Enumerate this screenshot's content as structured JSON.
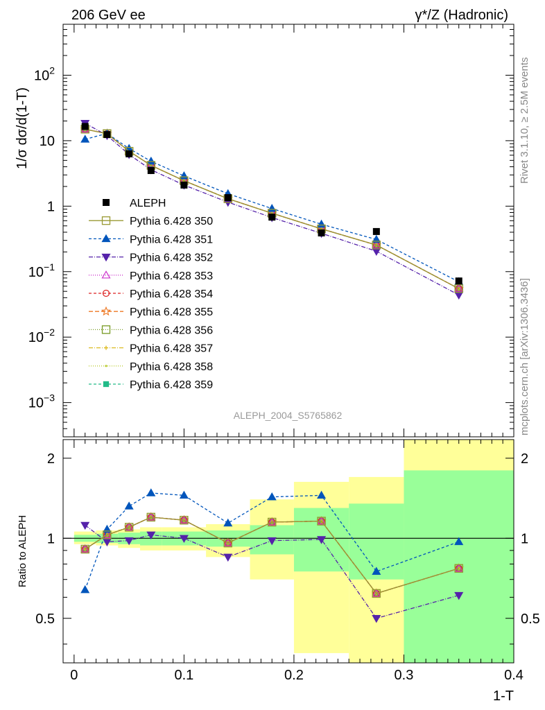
{
  "header": {
    "left": "206 GeV ee",
    "right": "γ*/Z (Hadronic)"
  },
  "side_labels": {
    "rivet": "Rivet 3.1.10, ≥ 2.5M events",
    "mcplots": "mcplots.cern.ch [arXiv:1306.3436]"
  },
  "analysis_id": "ALEPH_2004_S5765862",
  "colors": {
    "ratio_band_inner": "#99ff99",
    "ratio_band_outer": "#ffff99",
    "data": "#000000"
  },
  "chart_data": [
    {
      "type": "scatter",
      "panel": "main",
      "ylabel": "1/σ  dσ/d(1-T)",
      "yscale": "log",
      "ylim": [
        0.0003,
        600
      ],
      "xlim": [
        -0.01,
        0.4
      ],
      "yticks": [
        {
          "value": 100,
          "label": "10",
          "exp": "2"
        },
        {
          "value": 10,
          "label": "10",
          "exp": ""
        },
        {
          "value": 1,
          "label": "1",
          "exp": ""
        },
        {
          "value": 0.1,
          "label": "10",
          "exp": "−1"
        },
        {
          "value": 0.01,
          "label": "10",
          "exp": "−2"
        },
        {
          "value": 0.001,
          "label": "10",
          "exp": "−3"
        }
      ],
      "legend_position": "center-left",
      "x": [
        0.01,
        0.03,
        0.05,
        0.07,
        0.1,
        0.14,
        0.18,
        0.225,
        0.275,
        0.35
      ],
      "data": {
        "name": "ALEPH",
        "values": [
          16.5,
          12.4,
          6.3,
          3.5,
          2.1,
          1.35,
          0.68,
          0.39,
          0.41,
          0.072
        ]
      },
      "series": [
        {
          "name": "Pythia 6.428 350",
          "color": "#999933",
          "dash": "",
          "marker": "square-open",
          "values": [
            15.0,
            12.8,
            6.9,
            4.2,
            2.45,
            1.3,
            0.78,
            0.45,
            0.255,
            0.055
          ]
        },
        {
          "name": "Pythia 6.428 351",
          "color": "#0055bb",
          "dash": "4,3",
          "marker": "triangle-up",
          "values": [
            10.5,
            12.9,
            7.6,
            4.85,
            2.9,
            1.55,
            0.92,
            0.53,
            0.31,
            0.07
          ]
        },
        {
          "name": "Pythia 6.428 352",
          "color": "#5522aa",
          "dash": "6,2,1,2",
          "marker": "triangle-down",
          "values": [
            18.5,
            12.0,
            6.15,
            3.6,
            2.1,
            1.15,
            0.67,
            0.385,
            0.205,
            0.044
          ]
        },
        {
          "name": "Pythia 6.428 353",
          "color": "#cc33cc",
          "dash": "1,2",
          "marker": "triangle-up-open",
          "values": [
            15.0,
            12.8,
            6.9,
            4.2,
            2.45,
            1.3,
            0.78,
            0.45,
            0.255,
            0.055
          ]
        },
        {
          "name": "Pythia 6.428 354",
          "color": "#dd2222",
          "dash": "4,3",
          "marker": "circle-open",
          "values": [
            15.0,
            12.8,
            6.9,
            4.2,
            2.45,
            1.3,
            0.78,
            0.45,
            0.255,
            0.055
          ]
        },
        {
          "name": "Pythia 6.428 355",
          "color": "#ee7722",
          "dash": "6,3",
          "marker": "star-open",
          "values": [
            15.0,
            12.8,
            6.9,
            4.2,
            2.45,
            1.3,
            0.78,
            0.45,
            0.255,
            0.055
          ]
        },
        {
          "name": "Pythia 6.428 356",
          "color": "#779922",
          "dash": "1,2",
          "marker": "square-open",
          "values": [
            15.0,
            12.8,
            6.9,
            4.2,
            2.45,
            1.3,
            0.78,
            0.45,
            0.255,
            0.055
          ]
        },
        {
          "name": "Pythia 6.428 357",
          "color": "#ddbb22",
          "dash": "6,2,1,2",
          "marker": "cross-small",
          "values": [
            15.0,
            12.8,
            6.9,
            4.2,
            2.45,
            1.3,
            0.78,
            0.45,
            0.255,
            0.055
          ]
        },
        {
          "name": "Pythia 6.428 358",
          "color": "#bbcc33",
          "dash": "1,2",
          "marker": "dot-small",
          "values": [
            15.0,
            12.8,
            6.9,
            4.2,
            2.45,
            1.3,
            0.78,
            0.45,
            0.255,
            0.055
          ]
        },
        {
          "name": "Pythia 6.428 359",
          "color": "#22bb88",
          "dash": "4,3",
          "marker": "square-filled",
          "values": [
            15.0,
            12.8,
            6.9,
            4.2,
            2.45,
            1.3,
            0.78,
            0.45,
            0.255,
            0.055
          ]
        }
      ]
    },
    {
      "type": "line",
      "panel": "ratio",
      "ylabel": "Ratio to ALEPH",
      "xlabel": "1-T",
      "yscale": "log",
      "ylim": [
        0.34,
        2.35
      ],
      "xlim": [
        -0.01,
        0.4
      ],
      "yticks": [
        {
          "value": 0.5,
          "label": "0.5"
        },
        {
          "value": 1,
          "label": "1"
        },
        {
          "value": 2,
          "label": "2"
        }
      ],
      "xticks": [
        {
          "value": 0,
          "label": "0"
        },
        {
          "value": 0.1,
          "label": "0.1"
        },
        {
          "value": 0.2,
          "label": "0.2"
        },
        {
          "value": 0.3,
          "label": "0.3"
        },
        {
          "value": 0.4,
          "label": "0.4"
        }
      ],
      "bands": [
        {
          "x0": 0.0,
          "x1": 0.02,
          "inner": [
            0.97,
            1.03
          ],
          "outer": [
            0.95,
            1.06
          ]
        },
        {
          "x0": 0.02,
          "x1": 0.04,
          "inner": [
            0.96,
            1.04
          ],
          "outer": [
            0.94,
            1.07
          ]
        },
        {
          "x0": 0.04,
          "x1": 0.06,
          "inner": [
            0.95,
            1.05
          ],
          "outer": [
            0.92,
            1.08
          ]
        },
        {
          "x0": 0.06,
          "x1": 0.08,
          "inner": [
            0.94,
            1.06
          ],
          "outer": [
            0.9,
            1.1
          ]
        },
        {
          "x0": 0.08,
          "x1": 0.12,
          "inner": [
            0.94,
            1.06
          ],
          "outer": [
            0.9,
            1.1
          ]
        },
        {
          "x0": 0.12,
          "x1": 0.16,
          "inner": [
            0.93,
            1.07
          ],
          "outer": [
            0.85,
            1.13
          ]
        },
        {
          "x0": 0.16,
          "x1": 0.2,
          "inner": [
            0.87,
            1.12
          ],
          "outer": [
            0.7,
            1.4
          ]
        },
        {
          "x0": 0.2,
          "x1": 0.25,
          "inner": [
            0.75,
            1.3
          ],
          "outer": [
            0.37,
            1.63
          ]
        },
        {
          "x0": 0.25,
          "x1": 0.3,
          "inner": [
            0.7,
            1.35
          ],
          "outer": [
            0.34,
            1.7
          ]
        },
        {
          "x0": 0.3,
          "x1": 0.4,
          "inner": [
            0.34,
            1.8
          ],
          "outer": [
            0.34,
            2.35
          ]
        }
      ],
      "x": [
        0.01,
        0.03,
        0.05,
        0.07,
        0.1,
        0.14,
        0.18,
        0.225,
        0.275,
        0.35
      ],
      "series": [
        {
          "name": "Pythia 6.428 350",
          "values": [
            0.91,
            1.03,
            1.1,
            1.2,
            1.17,
            0.96,
            1.15,
            1.16,
            0.62,
            0.77
          ]
        },
        {
          "name": "Pythia 6.428 351",
          "values": [
            0.64,
            1.08,
            1.32,
            1.48,
            1.45,
            1.14,
            1.43,
            1.45,
            0.75,
            0.97
          ]
        },
        {
          "name": "Pythia 6.428 352",
          "values": [
            1.12,
            0.97,
            0.98,
            1.03,
            1.0,
            0.85,
            0.98,
            0.99,
            0.5,
            0.61
          ]
        },
        {
          "name": "Pythia 6.428 353",
          "values": [
            0.91,
            1.03,
            1.1,
            1.2,
            1.17,
            0.96,
            1.15,
            1.16,
            0.62,
            0.77
          ]
        },
        {
          "name": "Pythia 6.428 354",
          "values": [
            0.91,
            1.03,
            1.1,
            1.2,
            1.17,
            0.96,
            1.15,
            1.16,
            0.62,
            0.77
          ]
        },
        {
          "name": "Pythia 6.428 355",
          "values": [
            0.91,
            1.03,
            1.1,
            1.2,
            1.17,
            0.96,
            1.15,
            1.16,
            0.62,
            0.77
          ]
        },
        {
          "name": "Pythia 6.428 356",
          "values": [
            0.91,
            1.03,
            1.1,
            1.2,
            1.17,
            0.96,
            1.15,
            1.16,
            0.62,
            0.77
          ]
        },
        {
          "name": "Pythia 6.428 357",
          "values": [
            0.91,
            1.03,
            1.1,
            1.2,
            1.17,
            0.96,
            1.15,
            1.16,
            0.62,
            0.77
          ]
        },
        {
          "name": "Pythia 6.428 358",
          "values": [
            0.91,
            1.03,
            1.1,
            1.2,
            1.17,
            0.96,
            1.15,
            1.16,
            0.62,
            0.77
          ]
        },
        {
          "name": "Pythia 6.428 359",
          "values": [
            0.91,
            1.03,
            1.1,
            1.2,
            1.17,
            0.96,
            1.15,
            1.16,
            0.62,
            0.77
          ]
        }
      ]
    }
  ]
}
